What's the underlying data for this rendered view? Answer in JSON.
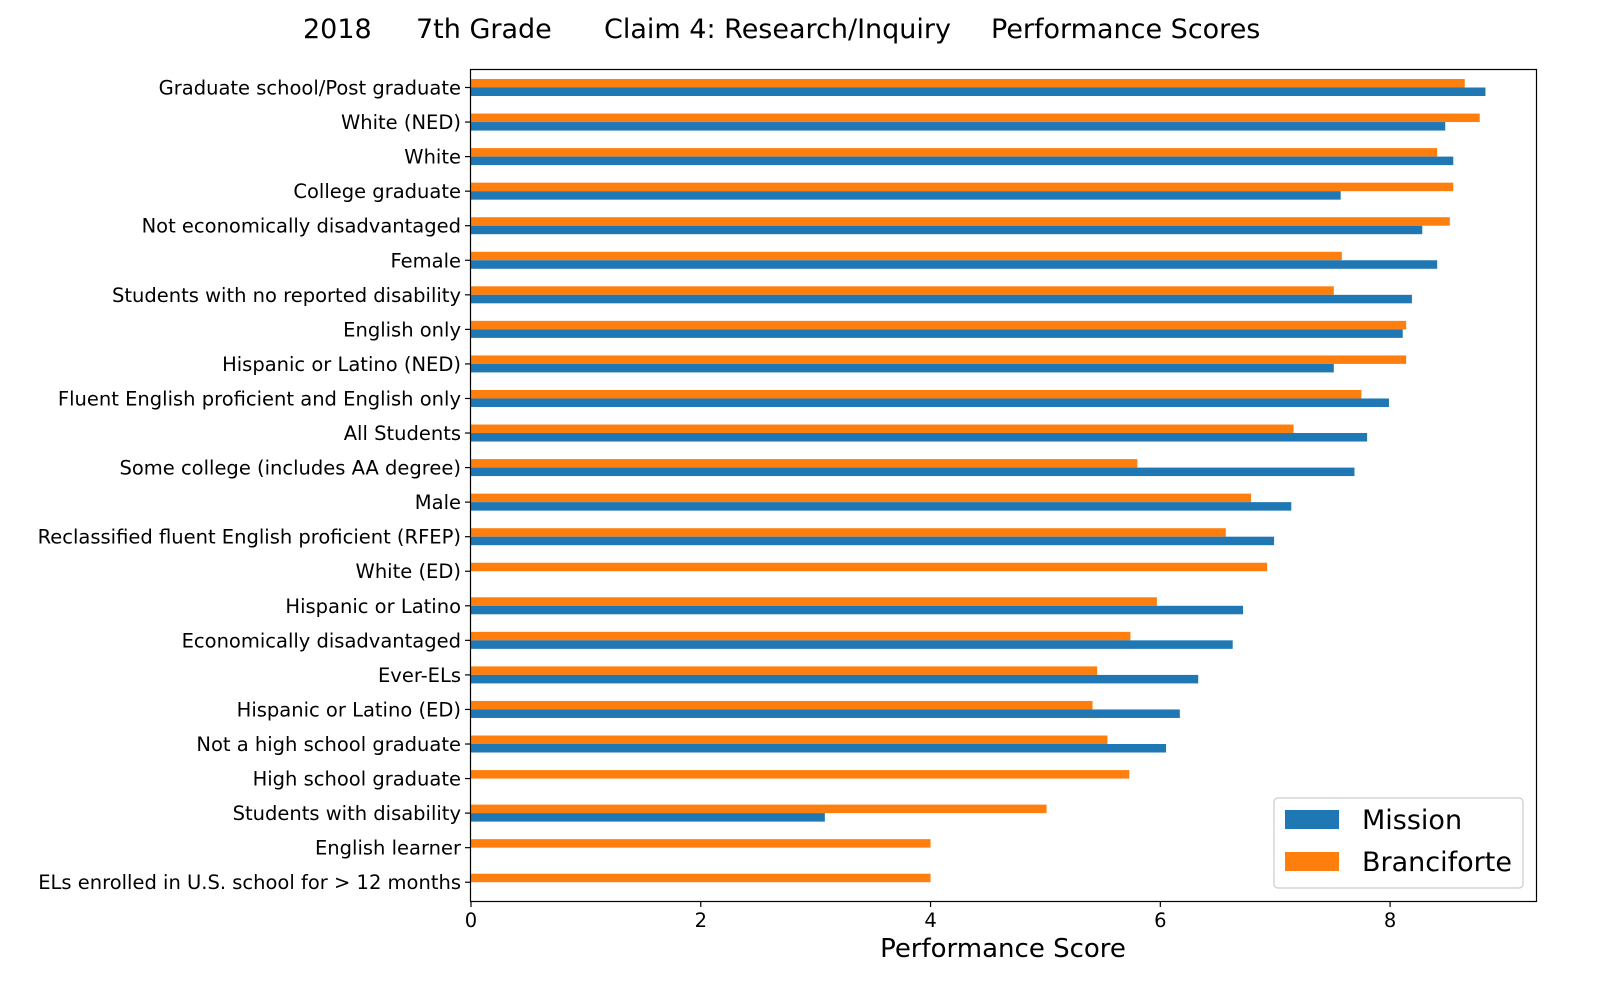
{
  "chart_data": {
    "type": "bar",
    "orientation": "horizontal",
    "title_parts": [
      "2018",
      "7th Grade",
      "Claim 4: Research/Inquiry",
      "Performance Scores"
    ],
    "xlabel": "Performance Score",
    "ylabel": "",
    "xlim": [
      0,
      9.27
    ],
    "xticks": [
      "0",
      "2",
      "4",
      "6",
      "8"
    ],
    "grid": false,
    "legend_position": "bottom-right",
    "categories": [
      "Graduate school/Post graduate",
      "White (NED)",
      "White",
      "College graduate",
      "Not economically disadvantaged",
      "Female",
      "Students with no reported disability",
      "English only",
      "Hispanic or Latino (NED)",
      "Fluent English proficient and English only",
      "All Students",
      "Some college (includes AA degree)",
      "Male",
      "Reclassified fluent English proficient (RFEP)",
      "White (ED)",
      "Hispanic or Latino",
      "Economically disadvantaged",
      "Ever-ELs",
      "Hispanic or Latino (ED)",
      "Not a high school graduate",
      "High school graduate",
      "Students with disability",
      "English learner",
      "ELs enrolled in U.S. school for > 12 months"
    ],
    "series": [
      {
        "name": "Mission",
        "color": "#1f77b4",
        "values": [
          8.83,
          8.48,
          8.55,
          7.57,
          8.28,
          8.41,
          8.19,
          8.11,
          7.51,
          7.99,
          7.8,
          7.69,
          7.14,
          6.99,
          null,
          6.72,
          6.63,
          6.33,
          6.17,
          6.05,
          null,
          3.08,
          null,
          null
        ]
      },
      {
        "name": "Branciforte",
        "color": "#ff7f0e",
        "values": [
          8.65,
          8.78,
          8.41,
          8.55,
          8.52,
          7.58,
          7.51,
          8.14,
          8.14,
          7.75,
          7.16,
          5.8,
          6.79,
          6.57,
          6.93,
          5.97,
          5.74,
          5.45,
          5.41,
          5.54,
          5.73,
          5.01,
          4.0,
          4.0
        ]
      }
    ]
  }
}
